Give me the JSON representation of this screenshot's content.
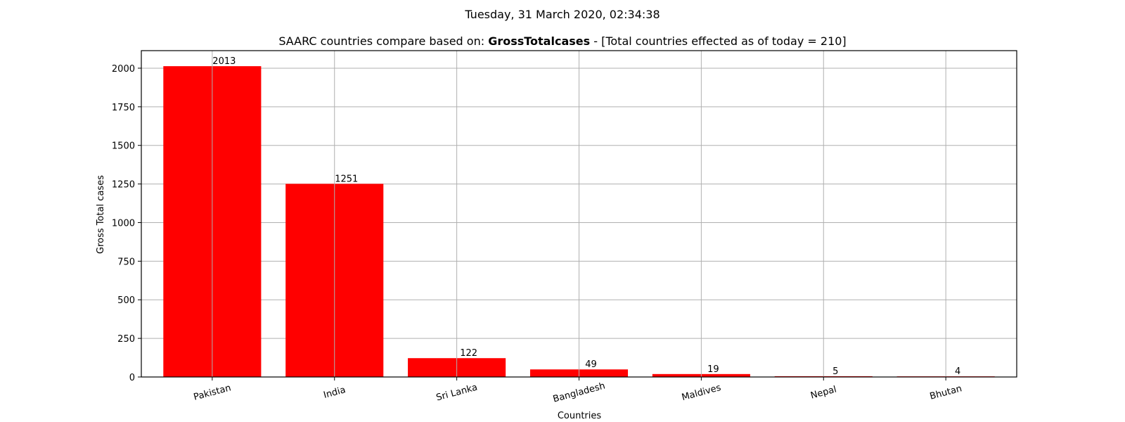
{
  "suptitle": "Tuesday, 31 March 2020, 02:34:38",
  "title": {
    "prefix": "SAARC countries compare based on: ",
    "bold": "GrossTotalcases",
    "suffix": " - [Total countries effected as of today = 210]"
  },
  "chart_data": {
    "type": "bar",
    "categories": [
      "Pakistan",
      "India",
      "Sri Lanka",
      "Bangladesh",
      "Maldives",
      "Nepal",
      "Bhutan"
    ],
    "values": [
      2013,
      1251,
      122,
      49,
      19,
      5,
      4
    ],
    "data_labels": [
      "2013",
      "1251",
      "122",
      "49",
      "19",
      "5",
      "4"
    ],
    "xlabel": "Countries",
    "ylabel": "Gross Total cases",
    "ylim": [
      0,
      2113.65
    ],
    "yticks": [
      0,
      250,
      500,
      750,
      1000,
      1250,
      1500,
      1750,
      2000
    ],
    "ytick_labels": [
      "0",
      "250",
      "500",
      "750",
      "1000",
      "1250",
      "1500",
      "1750",
      "2000"
    ],
    "grid": true,
    "bar_color": "#ff0000",
    "xtick_rotation": "slight"
  }
}
